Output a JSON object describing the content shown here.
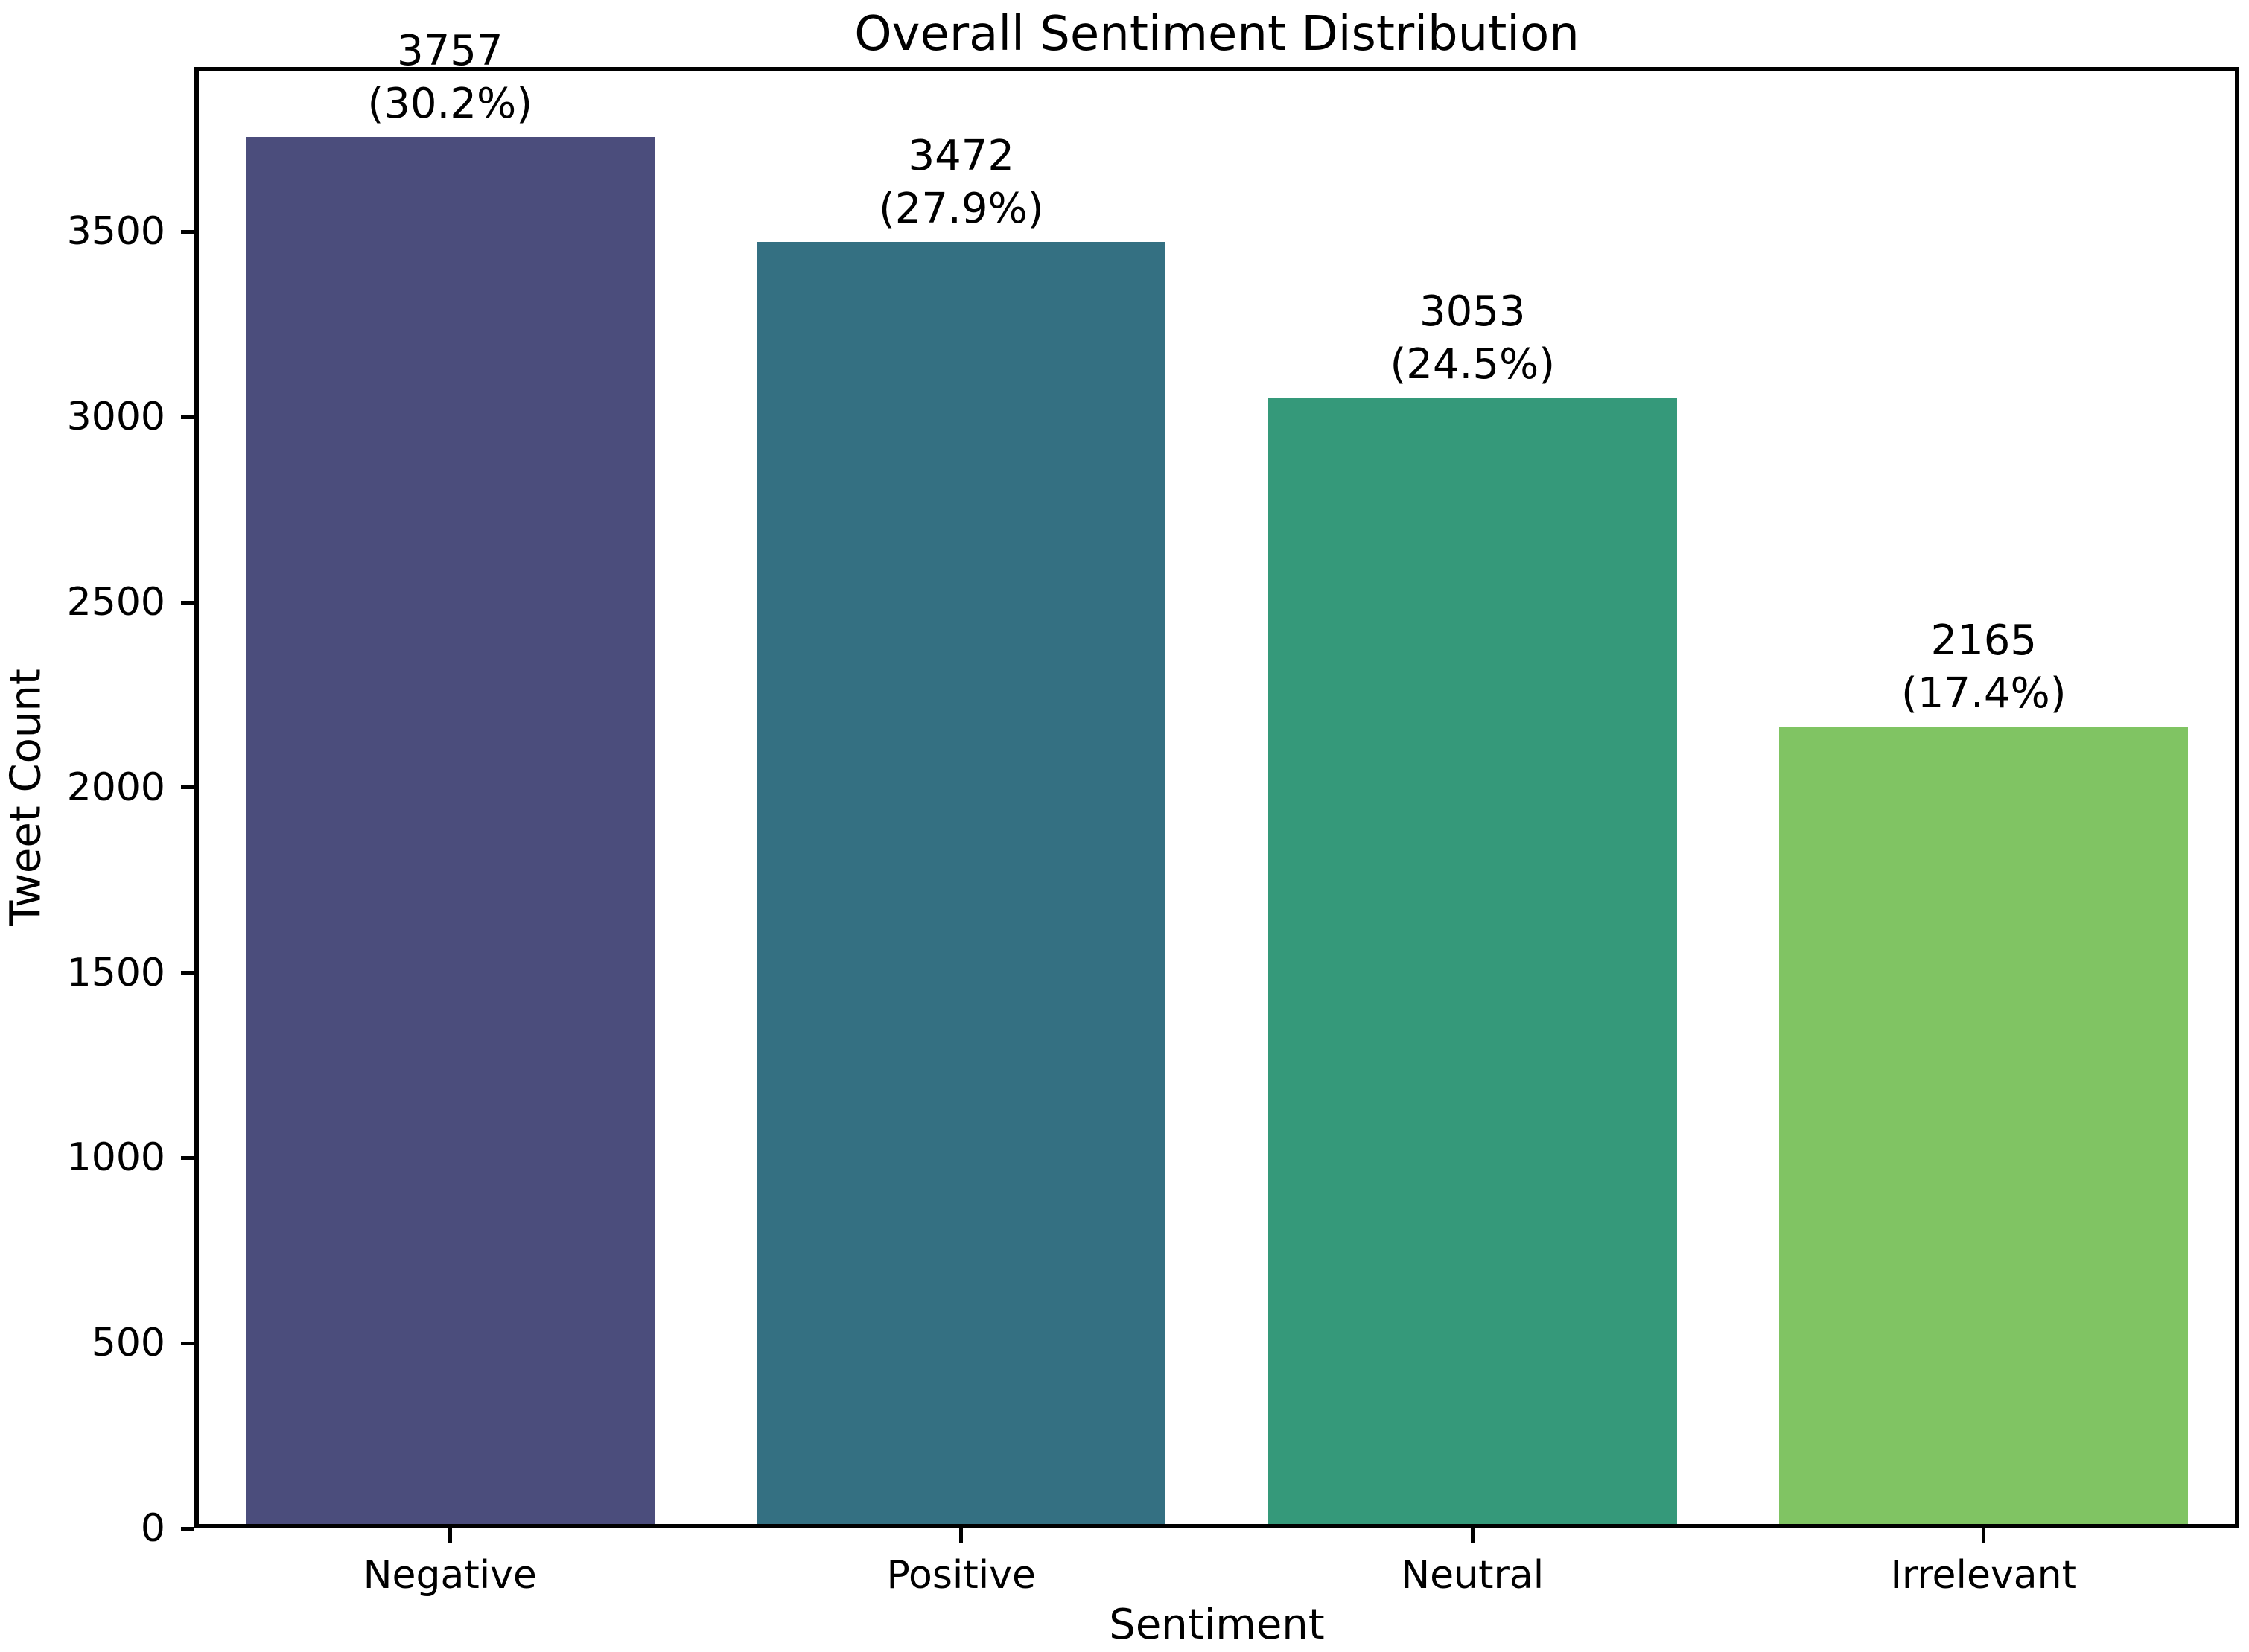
{
  "figure": {
    "background": "#ffffff",
    "text_color": "#000000",
    "spine_color": "#000000"
  },
  "chart_data": {
    "type": "bar",
    "title": "Overall Sentiment Distribution",
    "xlabel": "Sentiment",
    "ylabel": "Tweet Count",
    "categories": [
      "Negative",
      "Positive",
      "Neutral",
      "Irrelevant"
    ],
    "values": [
      3757,
      3472,
      3053,
      2165
    ],
    "value_labels": [
      "3757",
      "3472",
      "3053",
      "2165"
    ],
    "percent_labels": [
      "(30.2%)",
      "(27.9%)",
      "(24.5%)",
      "(17.4%)"
    ],
    "bar_colors": [
      "#4b4d7c",
      "#347082",
      "#35997a",
      "#80c463"
    ],
    "ylim": [
      0,
      3945
    ],
    "yticks": [
      0,
      500,
      1000,
      1500,
      2000,
      2500,
      3000,
      3500
    ],
    "grid": false,
    "legend": null,
    "bar_width_fraction": 0.8
  }
}
